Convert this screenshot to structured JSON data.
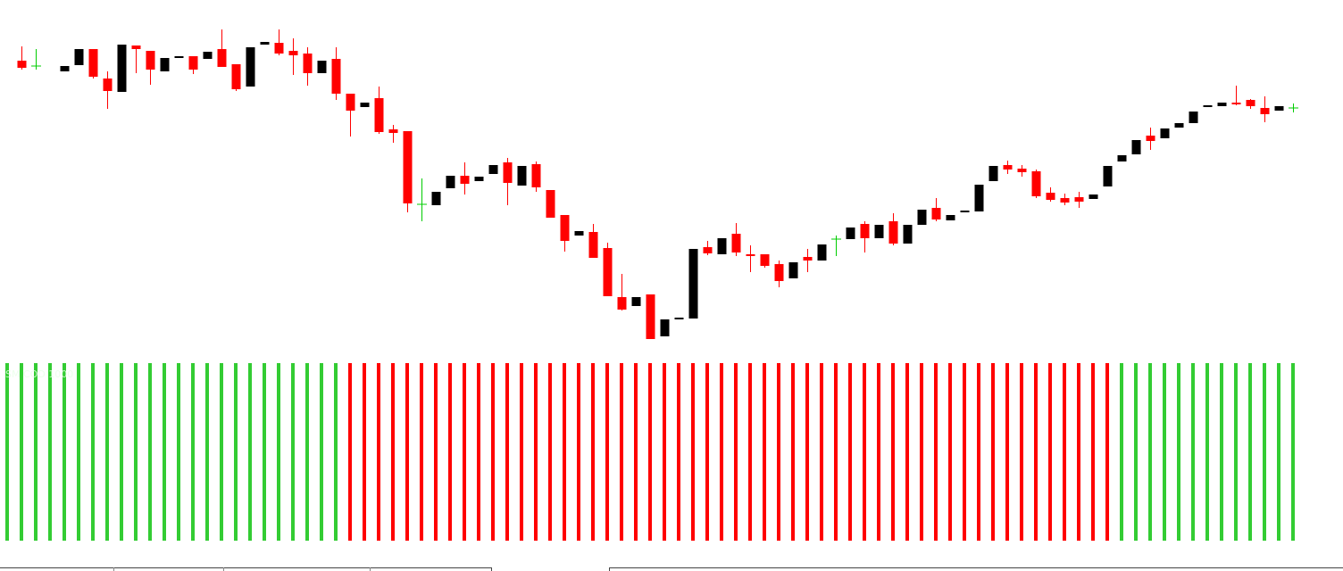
{
  "chart_data": [
    {
      "type": "candlestick",
      "up_color": "#000000",
      "down_color": "#ff0000",
      "doji_color": "#00cc00",
      "ylim": [
        0,
        400
      ],
      "open": [
        332,
        326,
        null,
        320,
        327,
        345,
        312,
        297,
        349,
        343,
        320,
        335,
        337,
        334,
        345,
        328,
        303,
        350,
        352,
        343,
        340,
        318,
        334,
        295,
        280,
        290,
        255,
        253,
        171,
        170,
        189,
        203,
        197,
        205,
        218,
        192,
        216,
        187,
        159,
        136,
        140,
        122,
        67,
        57,
        70,
        23,
        42,
        43,
        123,
        115,
        138,
        115,
        115,
        104,
        88,
        112,
        108,
        132,
        132,
        149,
        133,
        152,
        127,
        148,
        167,
        153,
        162,
        163,
        197,
        215,
        211,
        208,
        184,
        178,
        179,
        177,
        191,
        219,
        227,
        248,
        245,
        257,
        262,
        280,
        281,
        285,
        288,
        279,
        276,
        279
      ],
      "high": [
        348,
        345,
        null,
        326,
        345,
        345,
        320,
        350,
        349,
        343,
        335,
        337,
        337,
        342,
        367,
        328,
        347,
        353,
        367,
        357,
        347,
        332,
        347,
        295,
        285,
        303,
        260,
        253,
        200,
        185,
        203,
        218,
        202,
        215,
        223,
        214,
        219,
        187,
        159,
        141,
        149,
        128,
        93,
        67,
        70,
        42,
        44,
        121,
        130,
        133,
        150,
        125,
        115,
        108,
        106,
        121,
        126,
        136,
        145,
        152,
        148,
        161,
        148,
        165,
        178,
        159,
        164,
        193,
        214,
        220,
        215,
        210,
        190,
        183,
        185,
        182,
        214,
        226,
        243,
        257,
        256,
        262,
        275,
        282,
        285,
        304,
        289,
        292,
        281,
        284
      ],
      "low": [
        322,
        322,
        null,
        320,
        327,
        312,
        278,
        297,
        318,
        305,
        320,
        335,
        317,
        334,
        325,
        298,
        303,
        350,
        338,
        316,
        304,
        318,
        288,
        247,
        280,
        250,
        240,
        162,
        152,
        170,
        189,
        182,
        197,
        205,
        170,
        192,
        185,
        156,
        118,
        136,
        111,
        68,
        52,
        57,
        20,
        23,
        42,
        43,
        114,
        115,
        113,
        95,
        100,
        78,
        88,
        95,
        108,
        113,
        132,
        117,
        133,
        125,
        127,
        148,
        152,
        153,
        162,
        163,
        197,
        205,
        202,
        178,
        174,
        170,
        167,
        177,
        191,
        219,
        227,
        232,
        245,
        257,
        262,
        280,
        281,
        282,
        278,
        263,
        276,
        274
      ],
      "close": [
        324,
        326,
        null,
        326,
        345,
        314,
        298,
        350,
        345,
        322,
        335,
        337,
        322,
        342,
        325,
        300,
        347,
        353,
        340,
        338,
        318,
        332,
        295,
        276,
        285,
        252,
        251,
        172,
        171,
        185,
        203,
        194,
        202,
        215,
        195,
        214,
        190,
        156,
        130,
        141,
        111,
        68,
        53,
        67,
        20,
        42,
        44,
        121,
        116,
        133,
        117,
        113,
        102,
        85,
        106,
        108,
        126,
        132,
        145,
        133,
        148,
        127,
        148,
        165,
        154,
        159,
        164,
        193,
        214,
        210,
        207,
        180,
        176,
        173,
        174,
        182,
        214,
        226,
        243,
        242,
        256,
        262,
        275,
        282,
        285,
        283,
        281,
        272,
        281,
        279
      ]
    },
    {
      "type": "bar",
      "title": "SM COD 1000",
      "ylim": [
        0,
        1
      ],
      "series": [
        {
          "color": "#33cc33",
          "values": [
            1,
            1,
            1,
            1,
            1,
            1,
            1,
            1,
            1,
            1,
            1,
            1,
            1,
            1,
            1,
            1,
            1,
            1,
            1,
            1,
            1,
            1,
            1,
            1,
            null,
            null,
            null,
            null,
            null,
            null,
            null,
            null,
            null,
            null,
            null,
            null,
            null,
            null,
            null,
            null,
            null,
            null,
            null,
            null,
            null,
            null,
            null,
            null,
            null,
            null,
            null,
            null,
            null,
            null,
            null,
            null,
            null,
            null,
            null,
            null,
            null,
            null,
            null,
            null,
            null,
            null,
            null,
            null,
            null,
            null,
            null,
            null,
            null,
            null,
            null,
            null,
            null,
            null,
            1,
            1,
            1,
            1,
            1,
            1,
            1,
            1,
            1,
            1,
            1,
            1,
            1
          ]
        },
        {
          "color": "#ff0000",
          "values": [
            null,
            null,
            null,
            null,
            null,
            null,
            null,
            null,
            null,
            null,
            null,
            null,
            null,
            null,
            null,
            null,
            null,
            null,
            null,
            null,
            null,
            null,
            null,
            null,
            1,
            1,
            1,
            1,
            1,
            1,
            1,
            1,
            1,
            1,
            1,
            1,
            1,
            1,
            1,
            1,
            1,
            1,
            1,
            1,
            1,
            1,
            1,
            1,
            1,
            1,
            1,
            1,
            1,
            1,
            1,
            1,
            1,
            1,
            1,
            1,
            1,
            1,
            1,
            1,
            1,
            1,
            1,
            1,
            1,
            1,
            1,
            1,
            1,
            1,
            1,
            1,
            1,
            1,
            null,
            null,
            null,
            null,
            null,
            null,
            null,
            null,
            null,
            null,
            null,
            null,
            null
          ]
        }
      ]
    }
  ]
}
